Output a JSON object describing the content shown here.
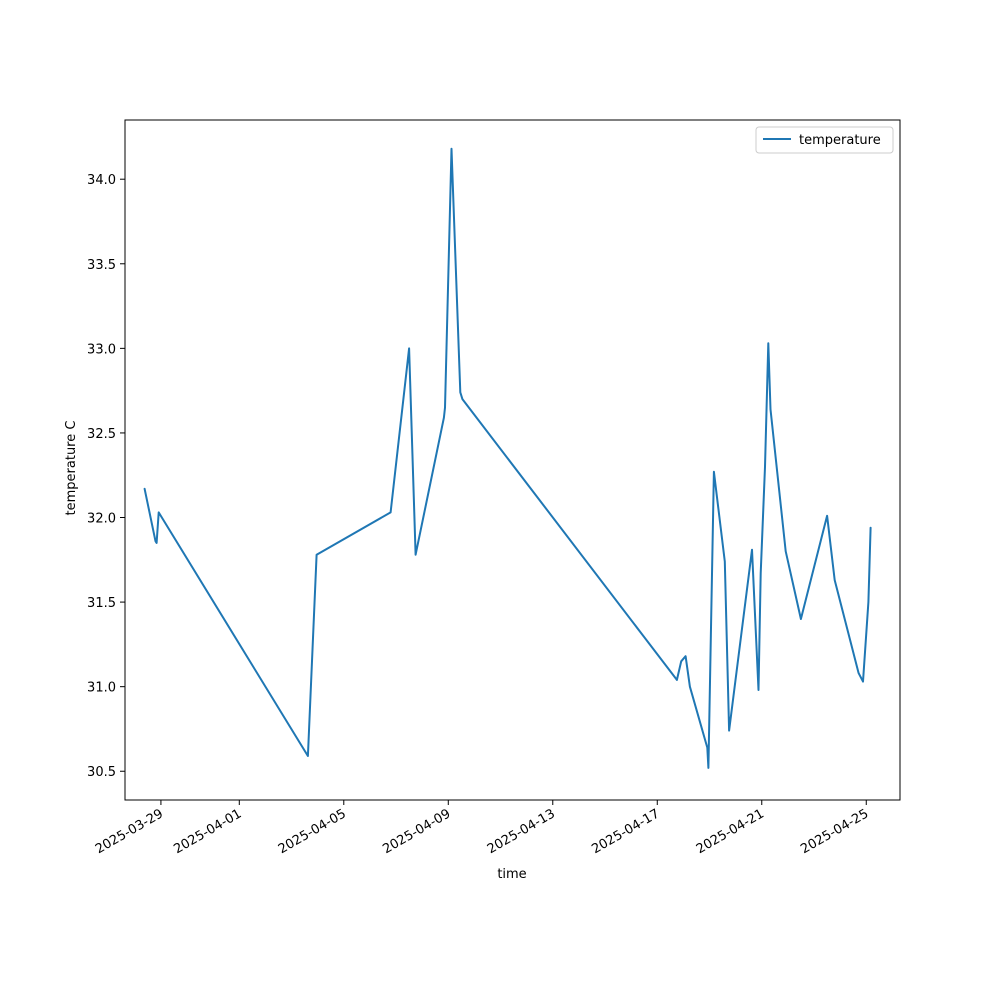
{
  "chart_data": {
    "type": "line",
    "title": "",
    "xlabel": "time",
    "ylabel": "temperature C",
    "x_ticks": [
      "2025-03-29",
      "2025-04-01",
      "2025-04-05",
      "2025-04-09",
      "2025-04-13",
      "2025-04-17",
      "2025-04-21",
      "2025-04-25"
    ],
    "y_ticks": [
      "30.5",
      "31.0",
      "31.5",
      "32.0",
      "32.5",
      "33.0",
      "33.5",
      "34.0"
    ],
    "xlim": [
      "2025-03-27T15:00",
      "2025-04-26T07:00"
    ],
    "ylim": [
      30.33,
      34.35
    ],
    "grid": false,
    "legend": "top-right",
    "line_color": "#1f77b4",
    "series": [
      {
        "name": "temperature",
        "points": [
          {
            "x": "2025-03-28T09:00",
            "y": 32.17
          },
          {
            "x": "2025-03-28T19:00",
            "y": 31.86
          },
          {
            "x": "2025-03-28T20:00",
            "y": 31.85
          },
          {
            "x": "2025-03-28T22:00",
            "y": 32.03
          },
          {
            "x": "2025-04-03T15:00",
            "y": 30.59
          },
          {
            "x": "2025-04-03T23:00",
            "y": 31.78
          },
          {
            "x": "2025-04-06T19:00",
            "y": 32.03
          },
          {
            "x": "2025-04-07T12:00",
            "y": 33.0
          },
          {
            "x": "2025-04-07T18:00",
            "y": 31.78
          },
          {
            "x": "2025-04-08T20:00",
            "y": 32.59
          },
          {
            "x": "2025-04-08T21:00",
            "y": 32.65
          },
          {
            "x": "2025-04-09T03:00",
            "y": 34.18
          },
          {
            "x": "2025-04-09T11:00",
            "y": 32.74
          },
          {
            "x": "2025-04-09T13:00",
            "y": 32.7
          },
          {
            "x": "2025-04-17T18:00",
            "y": 31.04
          },
          {
            "x": "2025-04-17T22:00",
            "y": 31.15
          },
          {
            "x": "2025-04-18T02:00",
            "y": 31.18
          },
          {
            "x": "2025-04-18T06:00",
            "y": 31.0
          },
          {
            "x": "2025-04-18T22:00",
            "y": 30.64
          },
          {
            "x": "2025-04-18T23:00",
            "y": 30.52
          },
          {
            "x": "2025-04-19T04:00",
            "y": 32.27
          },
          {
            "x": "2025-04-19T14:00",
            "y": 31.74
          },
          {
            "x": "2025-04-19T18:00",
            "y": 30.74
          },
          {
            "x": "2025-04-20T15:00",
            "y": 31.81
          },
          {
            "x": "2025-04-20T21:00",
            "y": 30.98
          },
          {
            "x": "2025-04-20T23:00",
            "y": 31.67
          },
          {
            "x": "2025-04-21T03:00",
            "y": 32.3
          },
          {
            "x": "2025-04-21T06:00",
            "y": 33.03
          },
          {
            "x": "2025-04-21T08:00",
            "y": 32.64
          },
          {
            "x": "2025-04-21T22:00",
            "y": 31.8
          },
          {
            "x": "2025-04-22T12:00",
            "y": 31.4
          },
          {
            "x": "2025-04-23T12:00",
            "y": 32.01
          },
          {
            "x": "2025-04-23T19:00",
            "y": 31.63
          },
          {
            "x": "2025-04-24T17:00",
            "y": 31.08
          },
          {
            "x": "2025-04-24T21:00",
            "y": 31.03
          },
          {
            "x": "2025-04-25T02:00",
            "y": 31.5
          },
          {
            "x": "2025-04-25T04:00",
            "y": 31.94
          }
        ]
      }
    ]
  }
}
